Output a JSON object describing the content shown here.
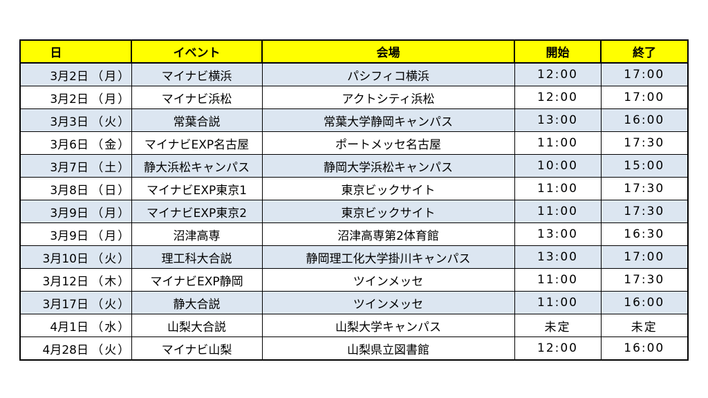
{
  "header": {
    "date": "日",
    "event": "イベント",
    "venue": "会場",
    "start": "開始",
    "end": "終了"
  },
  "rows": [
    {
      "date": "3月2日",
      "dow": "（月）",
      "event": "マイナビ横浜",
      "venue": "パシフィコ横浜",
      "start": "12:00",
      "end": "17:00"
    },
    {
      "date": "3月2日",
      "dow": "（月）",
      "event": "マイナビ浜松",
      "venue": "アクトシティ浜松",
      "start": "12:00",
      "end": "17:00"
    },
    {
      "date": "3月3日",
      "dow": "（火）",
      "event": "常葉合説",
      "venue": "常葉大学静岡キャンパス",
      "start": "13:00",
      "end": "16:00"
    },
    {
      "date": "3月6日",
      "dow": "（金）",
      "event": "マイナビEXP名古屋",
      "venue": "ポートメッセ名古屋",
      "start": "11:00",
      "end": "17:30"
    },
    {
      "date": "3月7日",
      "dow": "（土）",
      "event": "静大浜松キャンパス",
      "venue": "静岡大学浜松キャンパス",
      "start": "10:00",
      "end": "15:00"
    },
    {
      "date": "3月8日",
      "dow": "（日）",
      "event": "マイナビEXP東京1",
      "venue": "東京ビックサイト",
      "start": "11:00",
      "end": "17:30"
    },
    {
      "date": "3月9日",
      "dow": "（月）",
      "event": "マイナビEXP東京2",
      "venue": "東京ビックサイト",
      "start": "11:00",
      "end": "17:30"
    },
    {
      "date": "3月9日",
      "dow": "（月）",
      "event": "沼津高専",
      "venue": "沼津高専第2体育館",
      "start": "13:00",
      "end": "16:30"
    },
    {
      "date": "3月10日",
      "dow": "（火）",
      "event": "理工科大合説",
      "venue": "静岡理工化大学掛川キャンパス",
      "start": "13:00",
      "end": "17:00"
    },
    {
      "date": "3月12日",
      "dow": "（木）",
      "event": "マイナビEXP静岡",
      "venue": "ツインメッセ",
      "start": "11:00",
      "end": "17:30"
    },
    {
      "date": "3月17日",
      "dow": "（火）",
      "event": "静大合説",
      "venue": "ツインメッセ",
      "start": "11:00",
      "end": "16:00"
    },
    {
      "date": "4月1日",
      "dow": "（水）",
      "event": "山梨大合説",
      "venue": "山梨大学キャンパス",
      "start": "未定",
      "end": "未定"
    },
    {
      "date": "4月28日",
      "dow": "（火）",
      "event": "マイナビ山梨",
      "venue": "山梨県立図書館",
      "start": "12:00",
      "end": "16:00"
    }
  ],
  "colors": {
    "header_bg": "#ffff00",
    "alt_row_bg": "#dce6f1",
    "plain_row_bg": "#ffffff",
    "border": "#000000"
  }
}
